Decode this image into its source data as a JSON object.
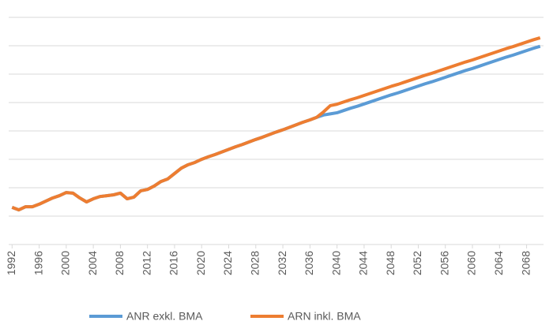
{
  "chart_data": {
    "type": "line",
    "x": [
      1992,
      1993,
      1994,
      1995,
      1996,
      1997,
      1998,
      1999,
      2000,
      2001,
      2002,
      2003,
      2004,
      2005,
      2006,
      2007,
      2008,
      2009,
      2010,
      2011,
      2012,
      2013,
      2014,
      2015,
      2016,
      2017,
      2018,
      2019,
      2020,
      2021,
      2022,
      2023,
      2024,
      2025,
      2026,
      2027,
      2028,
      2029,
      2030,
      2031,
      2032,
      2033,
      2034,
      2035,
      2036,
      2037,
      2038,
      2039,
      2040,
      2041,
      2042,
      2043,
      2044,
      2045,
      2046,
      2047,
      2048,
      2049,
      2050,
      2051,
      2052,
      2053,
      2054,
      2055,
      2056,
      2057,
      2058,
      2059,
      2060,
      2061,
      2062,
      2063,
      2064,
      2065,
      2066,
      2067,
      2068,
      2069,
      2070
    ],
    "series": [
      {
        "name": "ANR exkl. BMA",
        "color": "#5b9bd5",
        "values": [
          1.31,
          1.22,
          1.33,
          1.33,
          1.42,
          1.53,
          1.64,
          1.72,
          1.83,
          1.81,
          1.64,
          1.5,
          1.61,
          1.69,
          1.72,
          1.75,
          1.81,
          1.61,
          1.67,
          1.89,
          1.94,
          2.06,
          2.22,
          2.31,
          2.5,
          2.69,
          2.81,
          2.89,
          3.0,
          3.09,
          3.17,
          3.26,
          3.35,
          3.44,
          3.52,
          3.61,
          3.7,
          3.78,
          3.87,
          3.96,
          4.04,
          4.13,
          4.22,
          4.31,
          4.39,
          4.48,
          4.56,
          4.6,
          4.64,
          4.72,
          4.8,
          4.87,
          4.95,
          5.03,
          5.11,
          5.19,
          5.27,
          5.34,
          5.42,
          5.5,
          5.58,
          5.66,
          5.73,
          5.81,
          5.89,
          5.97,
          6.05,
          6.13,
          6.2,
          6.28,
          6.36,
          6.44,
          6.52,
          6.6,
          6.67,
          6.75,
          6.83,
          6.91,
          6.98
        ]
      },
      {
        "name": "ARN inkl. BMA",
        "color": "#ed7d31",
        "values": [
          1.31,
          1.22,
          1.33,
          1.33,
          1.42,
          1.53,
          1.64,
          1.72,
          1.83,
          1.81,
          1.64,
          1.5,
          1.61,
          1.69,
          1.72,
          1.75,
          1.81,
          1.61,
          1.67,
          1.89,
          1.94,
          2.06,
          2.22,
          2.31,
          2.5,
          2.69,
          2.81,
          2.89,
          3.0,
          3.09,
          3.17,
          3.26,
          3.35,
          3.44,
          3.52,
          3.61,
          3.7,
          3.78,
          3.87,
          3.96,
          4.04,
          4.13,
          4.22,
          4.31,
          4.39,
          4.48,
          4.67,
          4.89,
          4.94,
          5.02,
          5.1,
          5.17,
          5.25,
          5.33,
          5.41,
          5.49,
          5.57,
          5.64,
          5.72,
          5.8,
          5.88,
          5.96,
          6.03,
          6.11,
          6.19,
          6.27,
          6.35,
          6.43,
          6.5,
          6.58,
          6.66,
          6.74,
          6.82,
          6.9,
          6.97,
          7.05,
          7.13,
          7.21,
          7.28
        ]
      }
    ],
    "xlim": [
      1991.5,
      2070.5
    ],
    "xticks": [
      1992,
      1996,
      2000,
      2004,
      2008,
      2012,
      2016,
      2020,
      2024,
      2028,
      2032,
      2036,
      2040,
      2044,
      2048,
      2052,
      2056,
      2060,
      2064,
      2068
    ],
    "ylim": [
      0,
      8
    ],
    "yticks": [
      0,
      1,
      2,
      3,
      4,
      5,
      6,
      7,
      8
    ],
    "grid": true,
    "legend": "bottom"
  }
}
